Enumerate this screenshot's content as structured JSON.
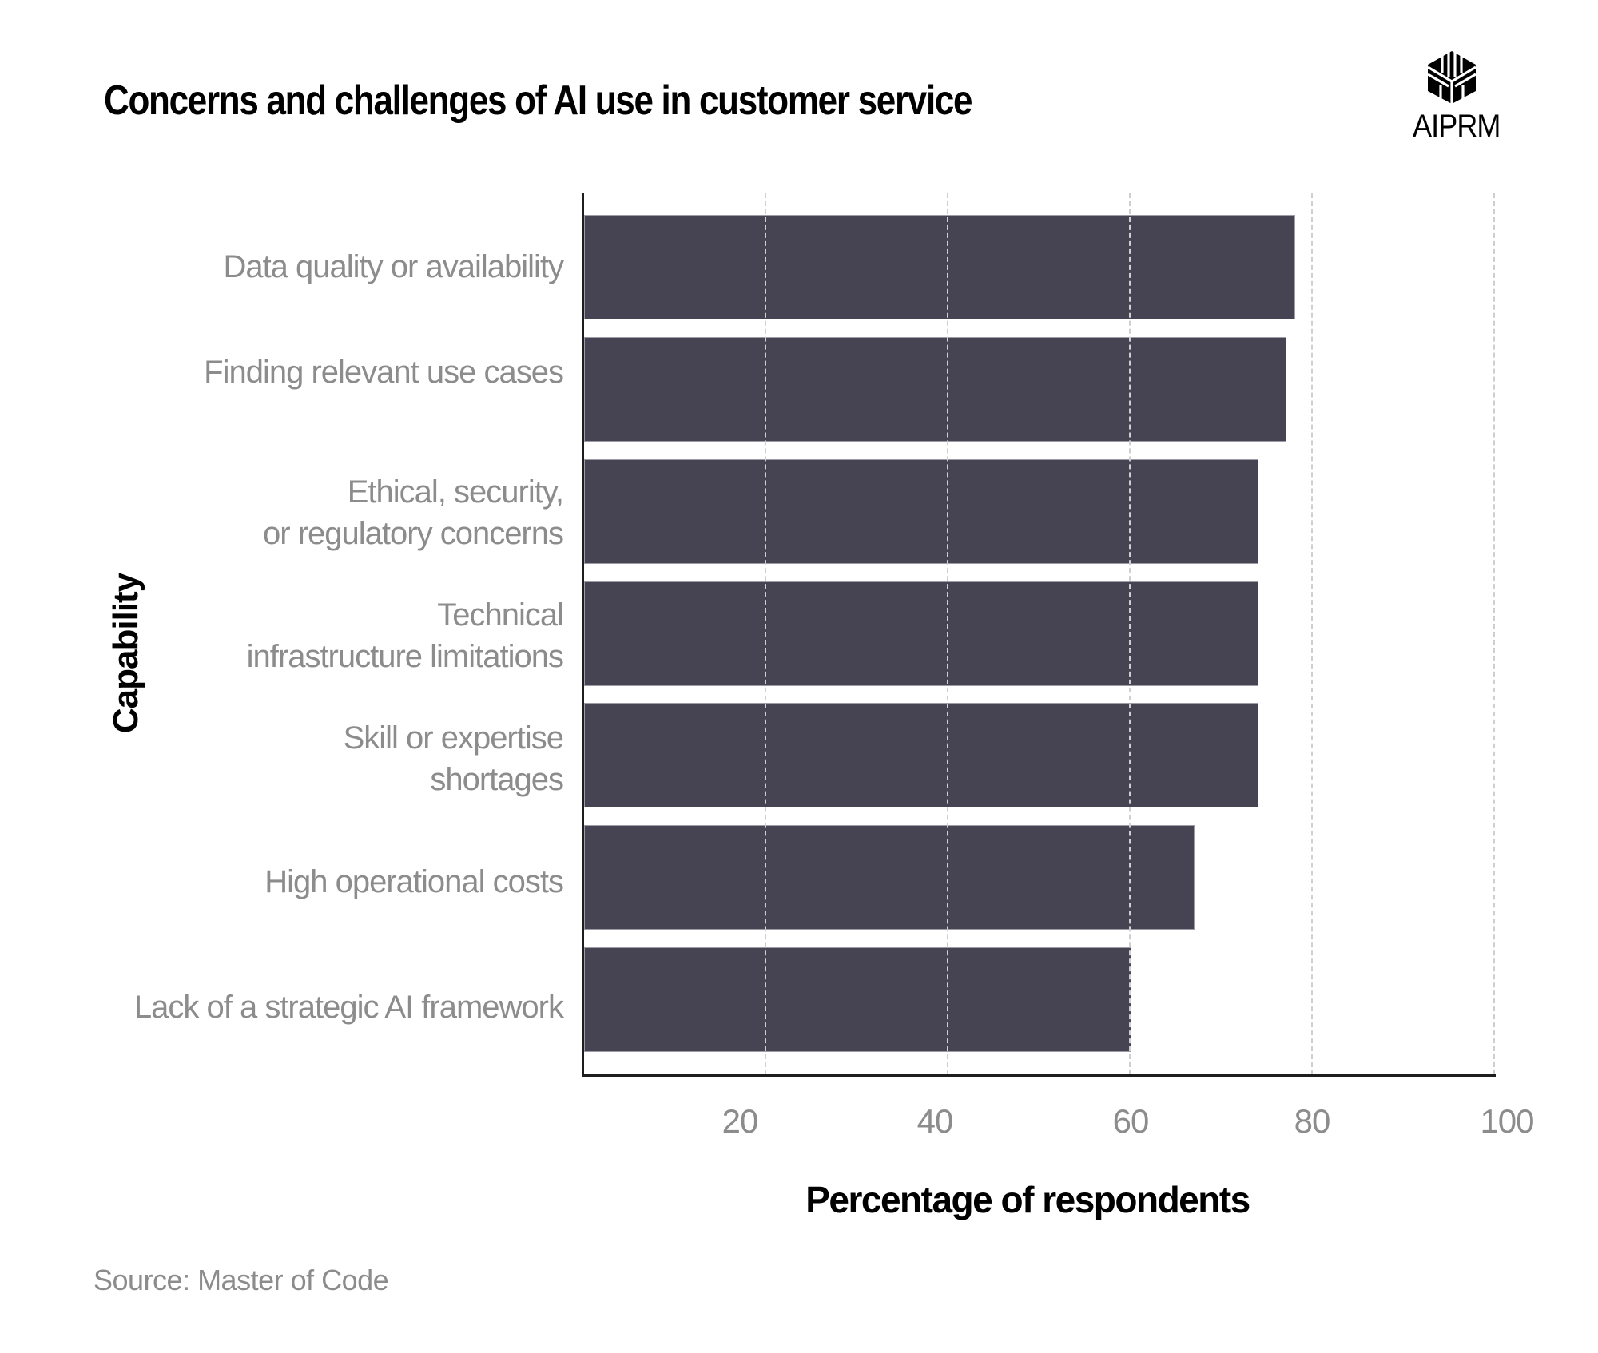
{
  "header": {
    "title": "Concerns and challenges of AI use in customer service",
    "logo": {
      "icon": "aiprm-hexagon-logo-icon",
      "text": "AIPRM"
    }
  },
  "colors": {
    "bar": "#464452",
    "bar_edge": "#9d9ca6",
    "label": "#8c8c8c",
    "grid": "#cfcfcf",
    "axis": "#1e1e1e"
  },
  "axes": {
    "y_title": "Capability",
    "x_title": "Percentage of respondents",
    "x_ticks": [
      "20",
      "40",
      "60",
      "80",
      "100"
    ]
  },
  "categories": [
    {
      "label": "Data quality or availability",
      "value": 78
    },
    {
      "label": "Finding relevant use cases",
      "value": 77
    },
    {
      "label": "Ethical, security,\nor regulatory concerns",
      "value": 74
    },
    {
      "label": "Technical\ninfrastructure limitations",
      "value": 74
    },
    {
      "label": "Skill or expertise\nshortages",
      "value": 74
    },
    {
      "label": "High operational costs",
      "value": 67
    },
    {
      "label": "Lack of a strategic AI framework",
      "value": 60
    }
  ],
  "footer": {
    "source": "Source:  Master of Code"
  },
  "chart_data": {
    "type": "bar",
    "orientation": "horizontal",
    "title": "Concerns and challenges of AI use in customer service",
    "categories": [
      "Data quality or availability",
      "Finding relevant use cases",
      "Ethical, security, or regulatory concerns",
      "Technical infrastructure limitations",
      "Skill or expertise shortages",
      "High operational costs",
      "Lack of a strategic AI framework"
    ],
    "values": [
      78,
      77,
      74,
      74,
      74,
      67,
      60
    ],
    "xlabel": "Percentage of respondents",
    "ylabel": "Capability",
    "xlim": [
      0,
      100
    ],
    "x_ticks": [
      20,
      40,
      60,
      80,
      100
    ],
    "grid": "vertical dashed",
    "legend": null,
    "source": "Master of Code"
  }
}
